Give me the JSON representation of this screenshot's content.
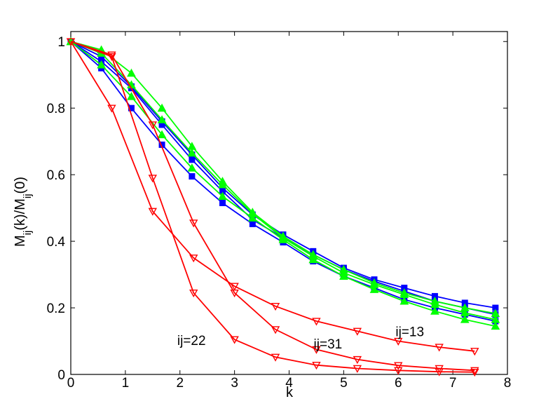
{
  "chart_data": {
    "type": "line",
    "title": "",
    "xlabel": "k",
    "ylabel": "M_ij(k)/M_ij(0)",
    "xlim": [
      0,
      8
    ],
    "ylim": [
      0,
      1.03
    ],
    "xticks": [
      "0",
      "1",
      "2",
      "3",
      "4",
      "5",
      "6",
      "7",
      "8"
    ],
    "yticks": [
      "0",
      "0.2",
      "0.4",
      "0.6",
      "0.8",
      "1"
    ],
    "grid": false,
    "legend": "none",
    "series": [
      {
        "color": "#0000ff",
        "marker": "square",
        "x": [
          0,
          0.56,
          1.11,
          1.67,
          2.22,
          2.78,
          3.33,
          3.89,
          4.44,
          5.0,
          5.56,
          6.11,
          6.67,
          7.22,
          7.78
        ],
        "y": [
          1,
          0.955,
          0.865,
          0.76,
          0.66,
          0.56,
          0.48,
          0.42,
          0.37,
          0.32,
          0.285,
          0.26,
          0.235,
          0.215,
          0.2
        ]
      },
      {
        "color": "#0000ff",
        "marker": "square",
        "x": [
          0,
          0.56,
          1.11,
          1.67,
          2.22,
          2.78,
          3.33,
          3.89,
          4.44,
          5.0,
          5.56,
          6.11,
          6.67,
          7.22,
          7.78
        ],
        "y": [
          1,
          0.92,
          0.8,
          0.69,
          0.595,
          0.515,
          0.452,
          0.397,
          0.34,
          0.295,
          0.26,
          0.225,
          0.2,
          0.18,
          0.16
        ]
      },
      {
        "color": "#0000ff",
        "marker": "square",
        "x": [
          0,
          0.56,
          1.11,
          1.67,
          2.22,
          2.78,
          3.33,
          3.89,
          4.44,
          5.0,
          5.56,
          6.11,
          6.67,
          7.22,
          7.78
        ],
        "y": [
          1,
          0.94,
          0.86,
          0.75,
          0.645,
          0.55,
          0.465,
          0.41,
          0.36,
          0.315,
          0.28,
          0.25,
          0.22,
          0.2,
          0.18
        ]
      },
      {
        "color": "#00ff00",
        "marker": "triangle-up",
        "x": [
          0,
          0.56,
          1.11,
          1.67,
          2.22,
          2.78,
          3.33,
          3.89,
          4.44,
          5.0,
          5.56,
          6.11,
          6.67,
          7.22,
          7.78
        ],
        "y": [
          1,
          0.975,
          0.905,
          0.8,
          0.685,
          0.58,
          0.487,
          0.415,
          0.36,
          0.315,
          0.275,
          0.245,
          0.22,
          0.2,
          0.183
        ]
      },
      {
        "color": "#00ff00",
        "marker": "triangle-up",
        "x": [
          0,
          0.56,
          1.11,
          1.67,
          2.22,
          2.78,
          3.33,
          3.89,
          4.44,
          5.0,
          5.56,
          6.11,
          6.67,
          7.22,
          7.78
        ],
        "y": [
          1,
          0.93,
          0.835,
          0.72,
          0.62,
          0.535,
          0.47,
          0.405,
          0.345,
          0.295,
          0.255,
          0.22,
          0.19,
          0.165,
          0.145
        ]
      },
      {
        "color": "#00ff00",
        "marker": "triangle-up",
        "x": [
          0,
          0.56,
          1.11,
          1.67,
          2.22,
          2.78,
          3.33,
          3.89,
          4.44,
          5.0,
          5.56,
          6.11,
          6.67,
          7.22,
          7.78
        ],
        "y": [
          1,
          0.965,
          0.87,
          0.765,
          0.665,
          0.57,
          0.483,
          0.41,
          0.355,
          0.305,
          0.27,
          0.24,
          0.21,
          0.185,
          0.165
        ]
      },
      {
        "color": "#ff0000",
        "marker": "triangle-down",
        "x": [
          0,
          0.75,
          1.5,
          2.25,
          3.0,
          3.75,
          4.5,
          5.25,
          6.0,
          6.75,
          7.4
        ],
        "y": [
          1,
          0.8,
          0.49,
          0.35,
          0.265,
          0.205,
          0.16,
          0.13,
          0.1,
          0.082,
          0.07
        ]
      },
      {
        "color": "#ff0000",
        "marker": "triangle-down",
        "x": [
          0,
          0.75,
          1.5,
          2.25,
          3.0,
          3.75,
          4.5,
          5.25,
          6.0,
          6.75,
          7.4
        ],
        "y": [
          1,
          0.96,
          0.75,
          0.455,
          0.245,
          0.135,
          0.075,
          0.045,
          0.027,
          0.018,
          0.012
        ]
      },
      {
        "color": "#ff0000",
        "marker": "triangle-down",
        "x": [
          0,
          0.75,
          1.5,
          2.25,
          3.0,
          3.75,
          4.5,
          5.25,
          6.0,
          6.75,
          7.4
        ],
        "y": [
          1,
          0.955,
          0.59,
          0.245,
          0.105,
          0.052,
          0.028,
          0.018,
          0.012,
          0.008,
          0.007
        ]
      }
    ],
    "annotations": [
      {
        "text": "ij=22",
        "x": 1.95,
        "y": 0.088
      },
      {
        "text": "ij=31",
        "x": 4.45,
        "y": 0.078
      },
      {
        "text": "ij=13",
        "x": 5.95,
        "y": 0.115
      }
    ]
  }
}
